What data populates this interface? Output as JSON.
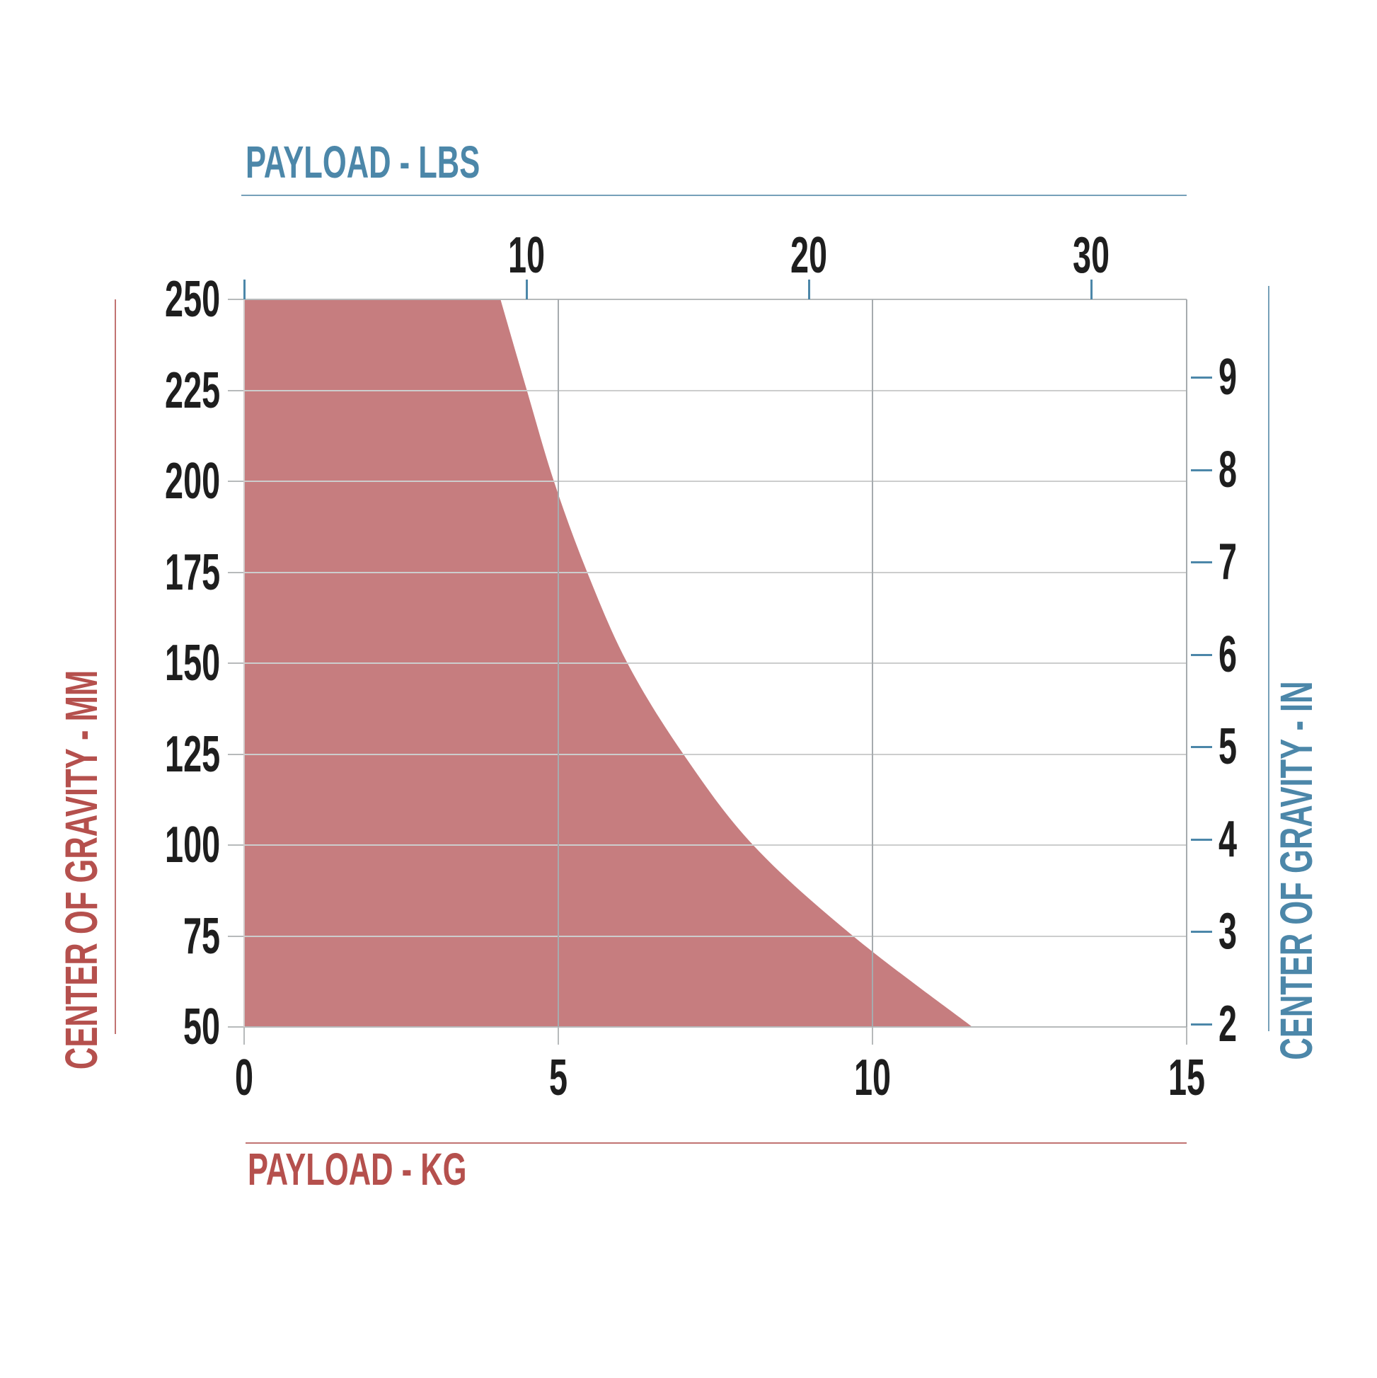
{
  "page": {
    "background": "#ffffff"
  },
  "chart_data": {
    "type": "area",
    "description": "Payload vs center-of-gravity capacity region; shaded area = allowable payload",
    "top_axis": {
      "label": "PAYLOAD - LBS",
      "unit": "lbs",
      "ticks": [
        "10",
        "20",
        "30"
      ],
      "tick_values": [
        10,
        20,
        30
      ],
      "range": [
        0,
        33.4
      ]
    },
    "bottom_axis": {
      "label": "PAYLOAD - KG",
      "unit": "kg",
      "ticks": [
        "0",
        "5",
        "10",
        "15"
      ],
      "tick_values": [
        0,
        5,
        10,
        15
      ],
      "range": [
        0,
        15
      ]
    },
    "left_axis": {
      "label": "CENTER OF GRAVITY - MM",
      "unit": "mm",
      "ticks": [
        "250",
        "225",
        "200",
        "175",
        "150",
        "125",
        "100",
        "75",
        "50"
      ],
      "tick_values": [
        250,
        225,
        200,
        175,
        150,
        125,
        100,
        75,
        50
      ],
      "range": [
        250,
        50
      ]
    },
    "right_axis": {
      "label": "CENTER OF GRAVITY - IN",
      "unit": "in",
      "ticks": [
        "9",
        "8",
        "7",
        "6",
        "5",
        "4",
        "3",
        "2"
      ],
      "tick_values": [
        9,
        8,
        7,
        6,
        5,
        4,
        3,
        2
      ]
    },
    "grid": true,
    "legend": "none",
    "series": [
      {
        "name": "allowable-payload-region",
        "fill": "#c67d7f",
        "points_kg_mm": [
          [
            0,
            250
          ],
          [
            4.08,
            250
          ],
          [
            4.5,
            225
          ],
          [
            4.93,
            200
          ],
          [
            5.46,
            175
          ],
          [
            6.1,
            150
          ],
          [
            6.99,
            125
          ],
          [
            8.1,
            100
          ],
          [
            9.69,
            75
          ],
          [
            11.59,
            50
          ],
          [
            0,
            50
          ]
        ]
      }
    ],
    "colors": {
      "blue": "#4c87a9",
      "blue_line": "#76a0b9",
      "red": "#b5504d",
      "red_line": "#c17372",
      "fill": "#c67d7f",
      "tick_text": "#1e1e1e",
      "grid_light": "#cccdcd",
      "grid_dark": "#a6abae",
      "border": "#b7babb",
      "border_left": "#d0caca"
    }
  }
}
